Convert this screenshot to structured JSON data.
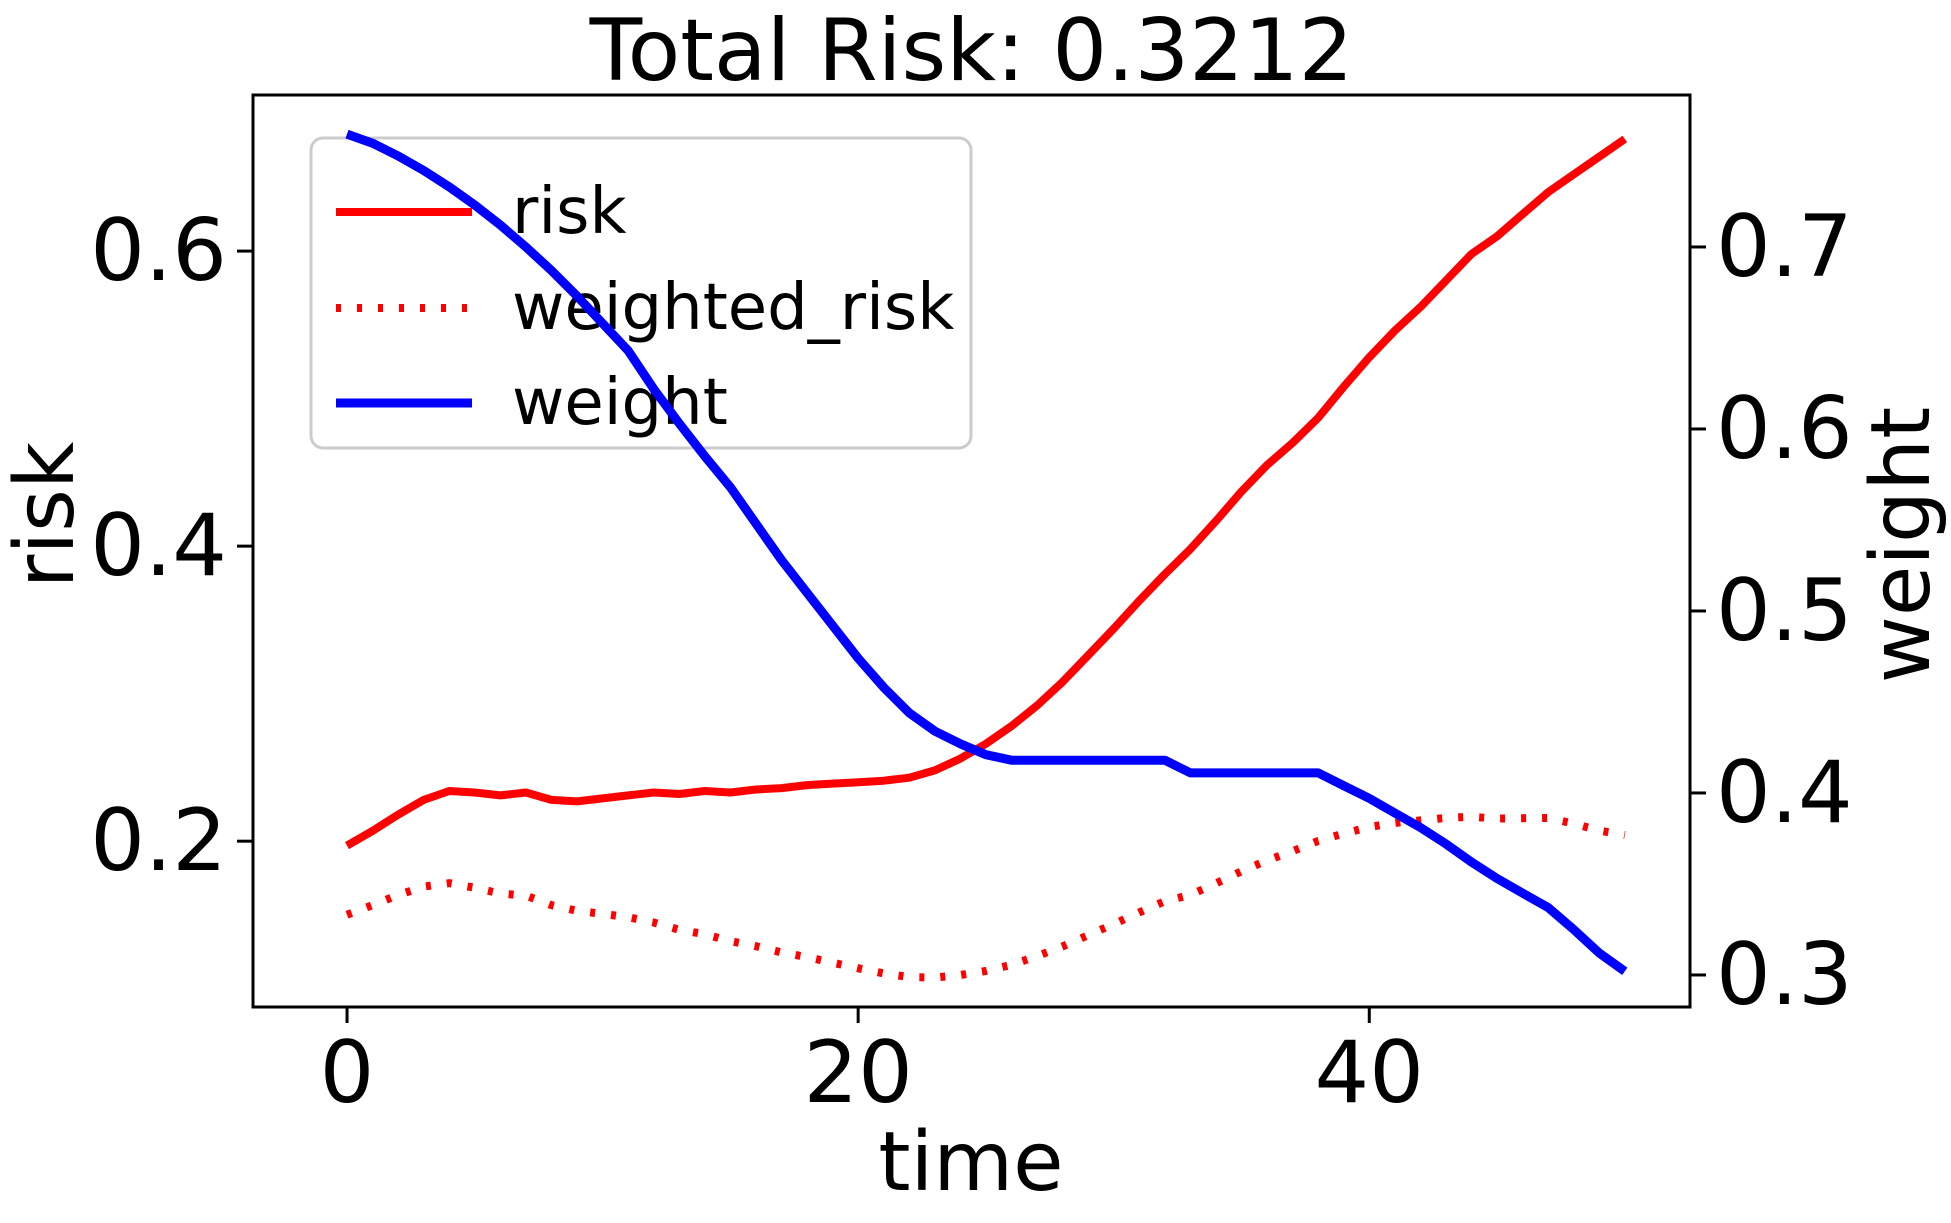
{
  "title": "Total Risk: 0.3212",
  "colors": {
    "risk_line": "#ff0000",
    "weighted_risk_line": "#ff0000",
    "weight_line": "#0000ff",
    "axis": "#000000",
    "legend_border": "#cccccc",
    "background": "#ffffff"
  },
  "legend": {
    "items": [
      {
        "label": "risk",
        "style": "solid",
        "color": "#ff0000"
      },
      {
        "label": "weighted_risk",
        "style": "dotted",
        "color": "#ff0000"
      },
      {
        "label": "weight",
        "style": "solid",
        "color": "#0000ff"
      }
    ]
  },
  "chart_data": {
    "type": "line",
    "title": "Total Risk: 0.3212",
    "xlabel": "time",
    "ylabel_left": "risk",
    "ylabel_right": "weight",
    "grid": false,
    "legend_position": "upper left",
    "xlim": [
      -3.68,
      52.55
    ],
    "ylim_left": [
      0.0876,
      0.7058
    ],
    "ylim_right": [
      0.2824,
      0.7835
    ],
    "x_ticks": [
      0,
      20,
      40
    ],
    "x_tick_labels": [
      "0",
      "20",
      "40"
    ],
    "left_ticks": [
      0.2,
      0.4,
      0.6
    ],
    "left_tick_labels": [
      "0.2",
      "0.4",
      "0.6"
    ],
    "right_ticks": [
      0.3,
      0.4,
      0.5,
      0.6,
      0.7
    ],
    "right_tick_labels": [
      "0.3",
      "0.4",
      "0.5",
      "0.6",
      "0.7"
    ],
    "x": [
      0,
      1,
      2,
      3,
      4,
      5,
      6,
      7,
      8,
      9,
      10,
      11,
      12,
      13,
      14,
      15,
      16,
      17,
      18,
      19,
      20,
      21,
      22,
      23,
      24,
      25,
      26,
      27,
      28,
      29,
      30,
      31,
      32,
      33,
      34,
      35,
      36,
      37,
      38,
      39,
      40,
      41,
      42,
      43,
      44,
      45,
      46,
      47,
      48,
      49,
      50
    ],
    "series": [
      {
        "name": "risk",
        "axis": "left",
        "color": "#ff0000",
        "style": "solid",
        "values": [
          0.197,
          0.207,
          0.218,
          0.228,
          0.234,
          0.233,
          0.231,
          0.233,
          0.228,
          0.227,
          0.229,
          0.231,
          0.233,
          0.232,
          0.234,
          0.233,
          0.235,
          0.236,
          0.238,
          0.239,
          0.24,
          0.241,
          0.243,
          0.248,
          0.256,
          0.266,
          0.278,
          0.292,
          0.308,
          0.326,
          0.344,
          0.363,
          0.381,
          0.398,
          0.417,
          0.437,
          0.455,
          0.47,
          0.487,
          0.508,
          0.528,
          0.546,
          0.562,
          0.58,
          0.598,
          0.61,
          0.625,
          0.64,
          0.652,
          0.664,
          0.676
        ]
      },
      {
        "name": "weighted_risk",
        "axis": "left",
        "color": "#ff0000",
        "style": "dotted",
        "values": [
          0.1501,
          0.1567,
          0.1635,
          0.1692,
          0.1715,
          0.1685,
          0.1645,
          0.1631,
          0.1566,
          0.1528,
          0.1507,
          0.1485,
          0.1449,
          0.1399,
          0.1369,
          0.1323,
          0.1288,
          0.1246,
          0.1214,
          0.1176,
          0.1138,
          0.1104,
          0.1079,
          0.1076,
          0.1093,
          0.112,
          0.1162,
          0.1221,
          0.1287,
          0.1363,
          0.1438,
          0.1517,
          0.1593,
          0.1636,
          0.1714,
          0.1796,
          0.187,
          0.1932,
          0.2002,
          0.2052,
          0.2096,
          0.2124,
          0.2141,
          0.2158,
          0.2165,
          0.2153,
          0.2156,
          0.2157,
          0.2119,
          0.2072,
          0.2042
        ]
      },
      {
        "name": "weight",
        "axis": "right",
        "color": "#0000ff",
        "style": "solid",
        "values": [
          0.762,
          0.757,
          0.75,
          0.742,
          0.733,
          0.723,
          0.712,
          0.7,
          0.687,
          0.673,
          0.658,
          0.643,
          0.622,
          0.603,
          0.585,
          0.568,
          0.548,
          0.528,
          0.51,
          0.492,
          0.474,
          0.458,
          0.444,
          0.434,
          0.427,
          0.421,
          0.418,
          0.418,
          0.418,
          0.418,
          0.418,
          0.418,
          0.418,
          0.411,
          0.411,
          0.411,
          0.411,
          0.411,
          0.411,
          0.404,
          0.397,
          0.389,
          0.381,
          0.372,
          0.362,
          0.353,
          0.345,
          0.337,
          0.325,
          0.312,
          0.302
        ]
      }
    ]
  }
}
